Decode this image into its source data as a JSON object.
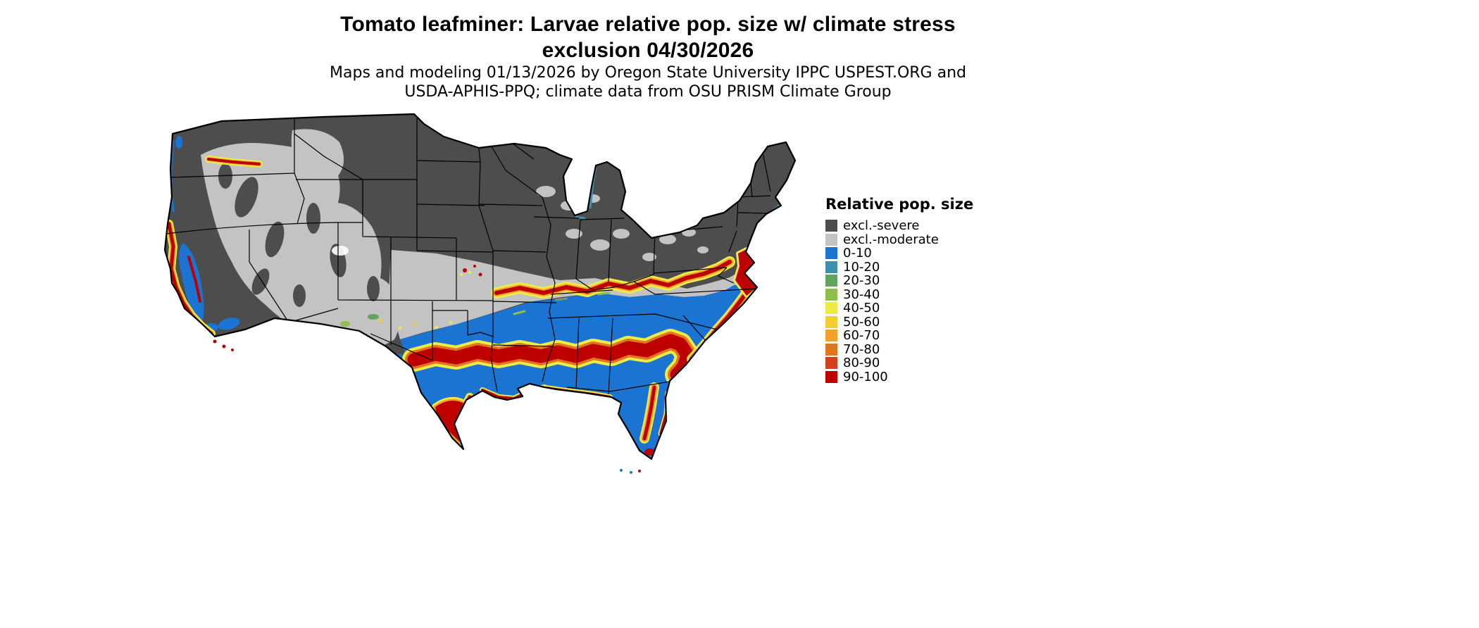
{
  "header": {
    "title_line1": "Tomato leafminer: Larvae relative pop. size w/ climate stress",
    "title_line2": "exclusion 04/30/2026",
    "credit_line1": "Maps and modeling 01/13/2026 by Oregon State University IPPC USPEST.ORG and",
    "credit_line2": "USDA-APHIS-PPQ; climate data from OSU PRISM Climate Group"
  },
  "map": {
    "region": "Contiguous United States",
    "type": "raster choropleth of relative population size categories",
    "observed_pattern": [
      "Northern tier, Rockies, Midwest, Great Lakes and Northeast: excl.-severe (dark gray)",
      "Great Basin, high plains and a central belt: excl.-moderate (light gray)",
      "Southern states from Texas through the Southeast up to Virginia: mostly 0-10 (blue)",
      "Wavy 90-100 (red) bands with yellow-orange fringes across central Texas to Georgia and along the Tennessee/Virginia line",
      "Red with yellow fringe along the California coast, southern Texas, central Florida and the mid-Atlantic coast",
      "Mixed red/blue/yellow mottling in Arizona, New Mexico and the Central Valley; small red streak in western Oregon"
    ]
  },
  "legend": {
    "title": "Relative pop. size",
    "items": [
      {
        "label": "excl.-severe",
        "color": "#4D4D4D"
      },
      {
        "label": "excl.-moderate",
        "color": "#C3C3C3"
      },
      {
        "label": "0-10",
        "color": "#1B74D2"
      },
      {
        "label": "10-20",
        "color": "#3E8EAD"
      },
      {
        "label": "20-30",
        "color": "#62A45F"
      },
      {
        "label": "30-40",
        "color": "#8FBE4B"
      },
      {
        "label": "40-50",
        "color": "#EFEB46"
      },
      {
        "label": "50-60",
        "color": "#F2CE2F"
      },
      {
        "label": "60-70",
        "color": "#F2A12D"
      },
      {
        "label": "70-80",
        "color": "#E0761F"
      },
      {
        "label": "80-90",
        "color": "#D2401E"
      },
      {
        "label": "90-100",
        "color": "#BE0000"
      }
    ]
  }
}
